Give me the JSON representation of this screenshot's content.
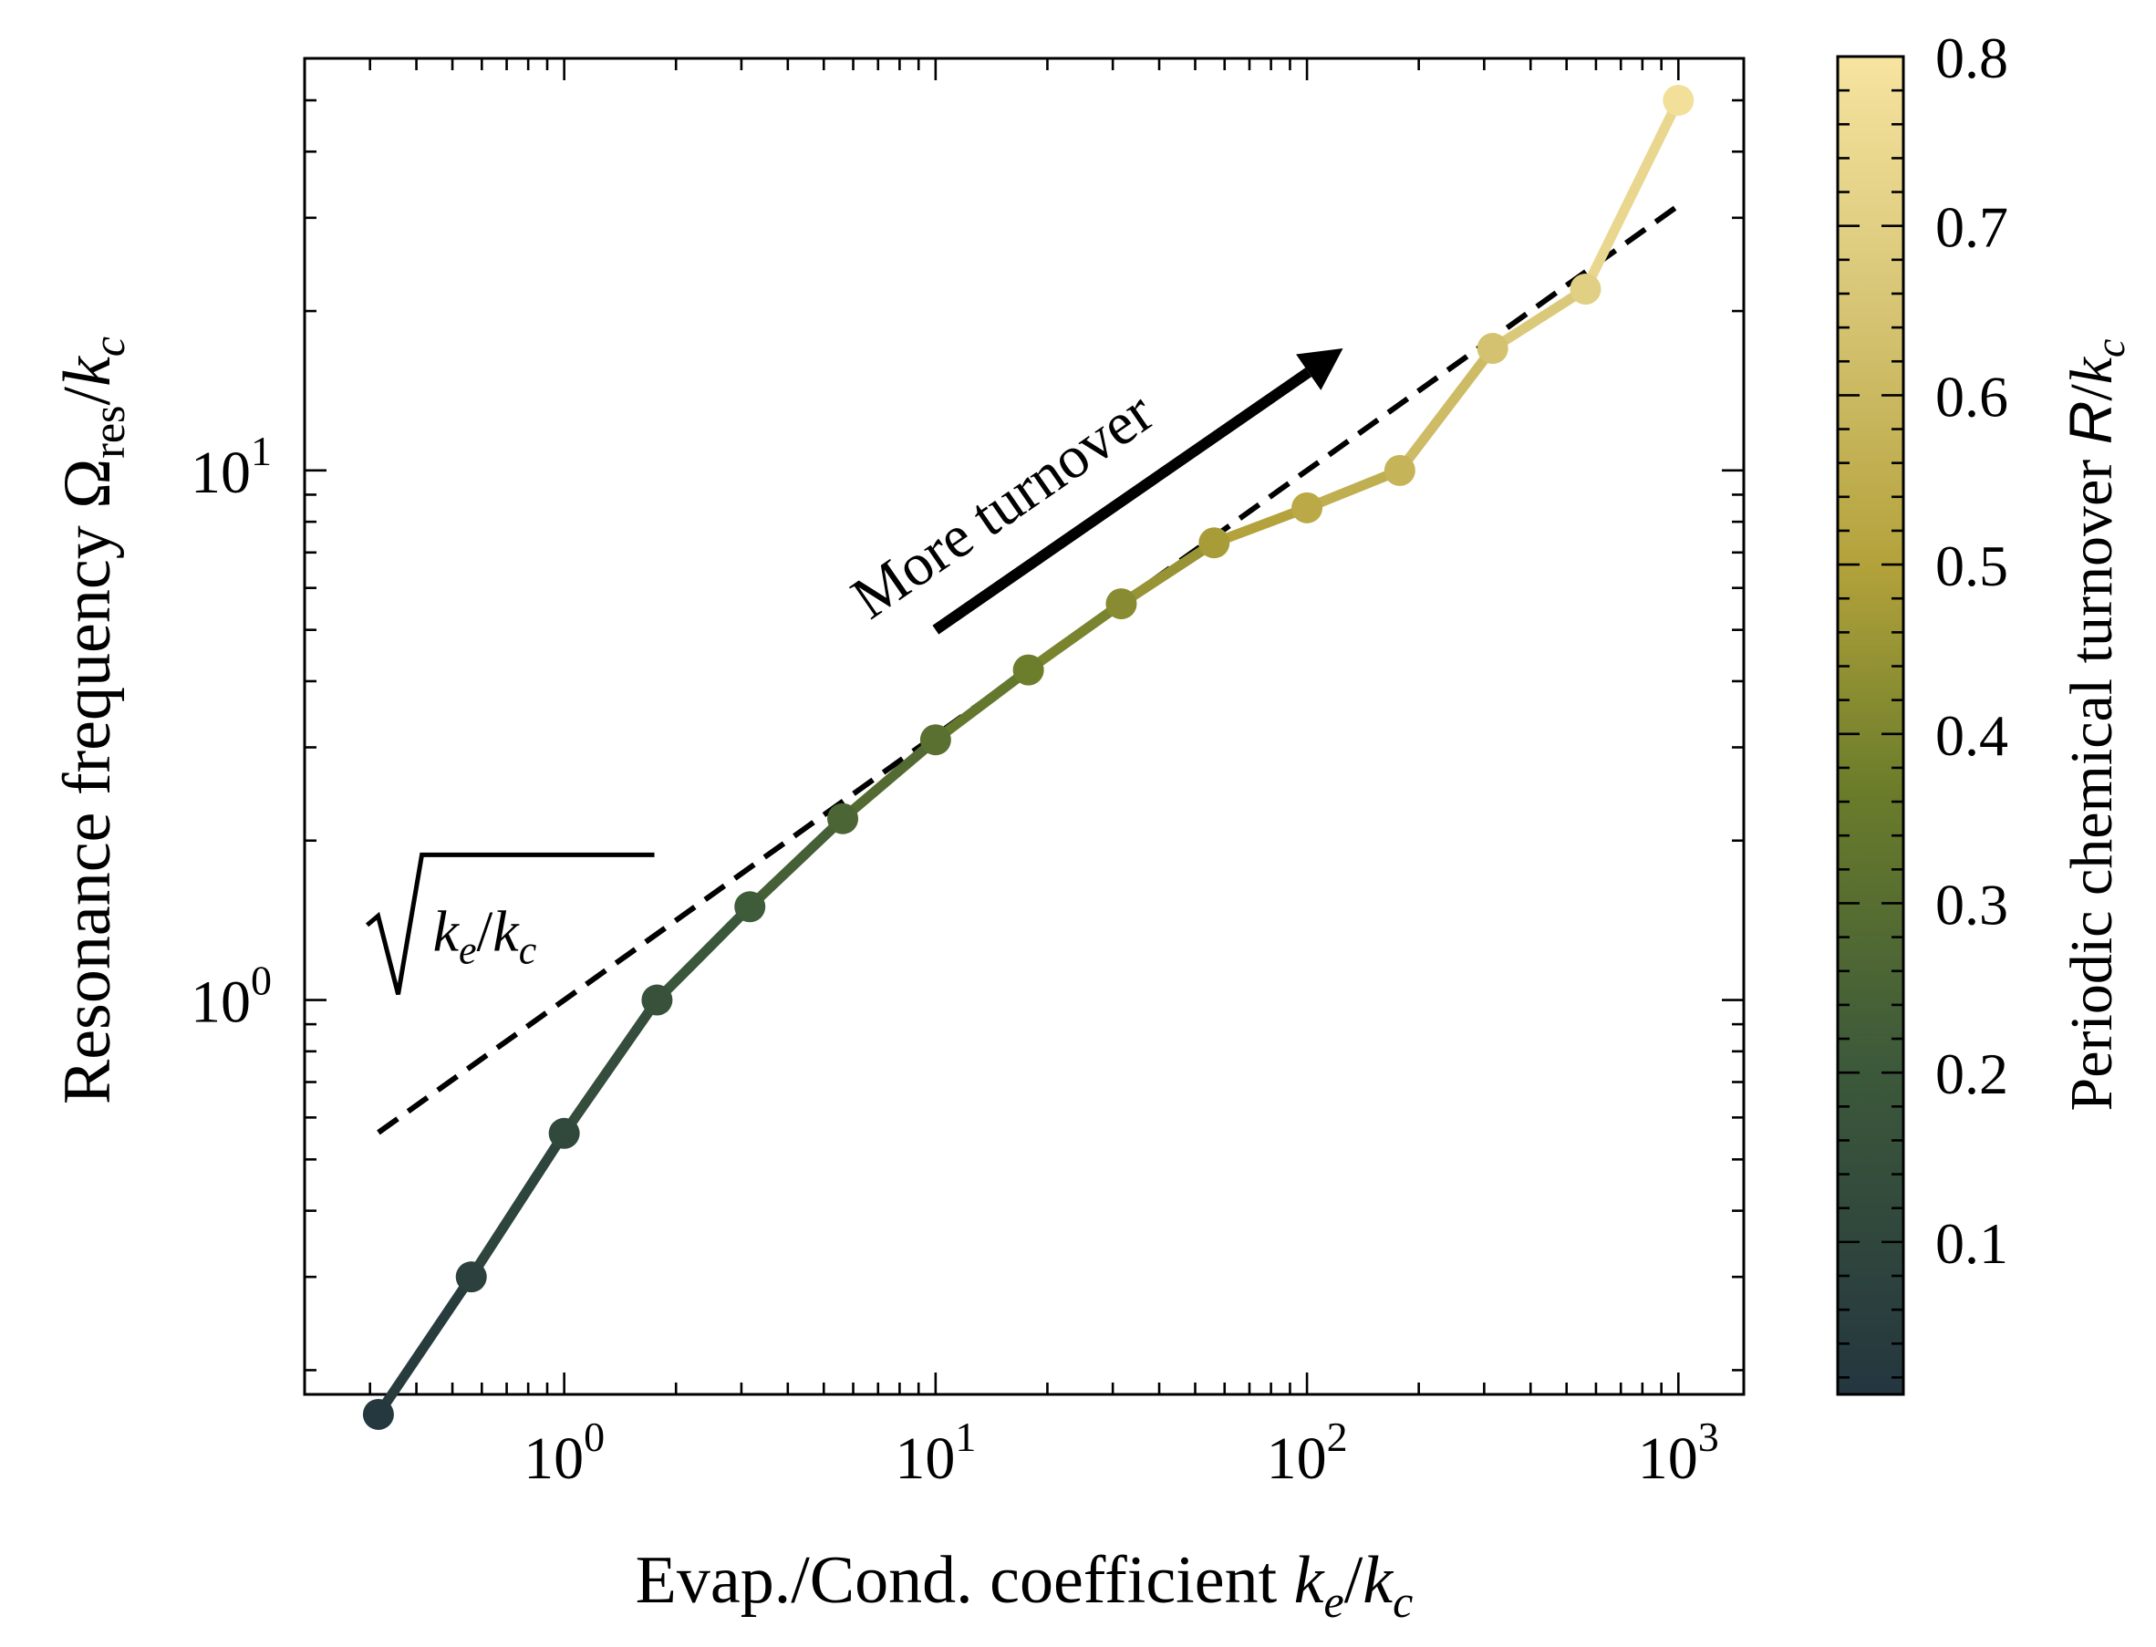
{
  "chart_data": {
    "type": "line",
    "xscale": "log",
    "yscale": "log",
    "xlim": [
      0.2,
      1500
    ],
    "ylim": [
      0.18,
      60
    ],
    "xlabel": {
      "main": "Evap./Cond. coefficient ",
      "var": "k",
      "sub": "e",
      "slash": "/",
      "var2": "k",
      "sub2": "c"
    },
    "ylabel": {
      "main": "Resonance frequency ",
      "sym": "Ω",
      "sub": "res",
      "slash": "/",
      "var": "k",
      "sub2": "c"
    },
    "xticks": [
      {
        "base": "10",
        "exp": "0",
        "value": 1
      },
      {
        "base": "10",
        "exp": "1",
        "value": 10
      },
      {
        "base": "10",
        "exp": "2",
        "value": 100
      },
      {
        "base": "10",
        "exp": "3",
        "value": 1000
      }
    ],
    "yticks": [
      {
        "base": "10",
        "exp": "0",
        "value": 1
      },
      {
        "base": "10",
        "exp": "1",
        "value": 10
      }
    ],
    "series": [
      {
        "name": "resonance",
        "x": [
          0.316,
          0.562,
          1.0,
          1.778,
          3.162,
          5.623,
          10.0,
          17.78,
          31.62,
          56.23,
          100.0,
          177.8,
          316.2,
          562.3,
          1000.0
        ],
        "y": [
          0.165,
          0.3,
          0.56,
          1.0,
          1.5,
          2.2,
          3.1,
          4.2,
          5.6,
          7.3,
          8.5,
          10.0,
          17.0,
          22.0,
          50.0
        ],
        "turnover": [
          0.02,
          0.07,
          0.11,
          0.16,
          0.21,
          0.26,
          0.31,
          0.37,
          0.42,
          0.48,
          0.53,
          0.58,
          0.64,
          0.7,
          0.78
        ]
      },
      {
        "name": "sqrt fit",
        "style": "dashed",
        "x": [
          0.316,
          1000.0
        ],
        "y": [
          0.562,
          31.62
        ]
      }
    ],
    "annotations": [
      {
        "text": "More turnover",
        "arrow_from": [
          10.0,
          5.0
        ],
        "arrow_to": [
          125.0,
          17.0
        ]
      },
      {
        "label_var": "k",
        "label_sub": "e",
        "label_slash": "/",
        "label_var2": "k",
        "label_sub2": "c",
        "kind": "sqrt",
        "anchor": [
          0.33,
          1.3
        ]
      }
    ],
    "colorbar": {
      "label_main": "Periodic chemical turnover ",
      "label_sym": "R",
      "label_slash": "/",
      "label_var": "k",
      "label_sub": "c",
      "range": [
        0.01,
        0.8
      ],
      "ticks": [
        "0.1",
        "0.2",
        "0.3",
        "0.4",
        "0.5",
        "0.6",
        "0.7",
        "0.8"
      ],
      "stops": [
        {
          "v": 0.0,
          "color": "#24363f"
        },
        {
          "v": 0.25,
          "color": "#3d5a3a"
        },
        {
          "v": 0.45,
          "color": "#6a7c2a"
        },
        {
          "v": 0.62,
          "color": "#b3a23b"
        },
        {
          "v": 0.82,
          "color": "#d8c677"
        },
        {
          "v": 1.0,
          "color": "#f6e4a0"
        }
      ]
    }
  }
}
